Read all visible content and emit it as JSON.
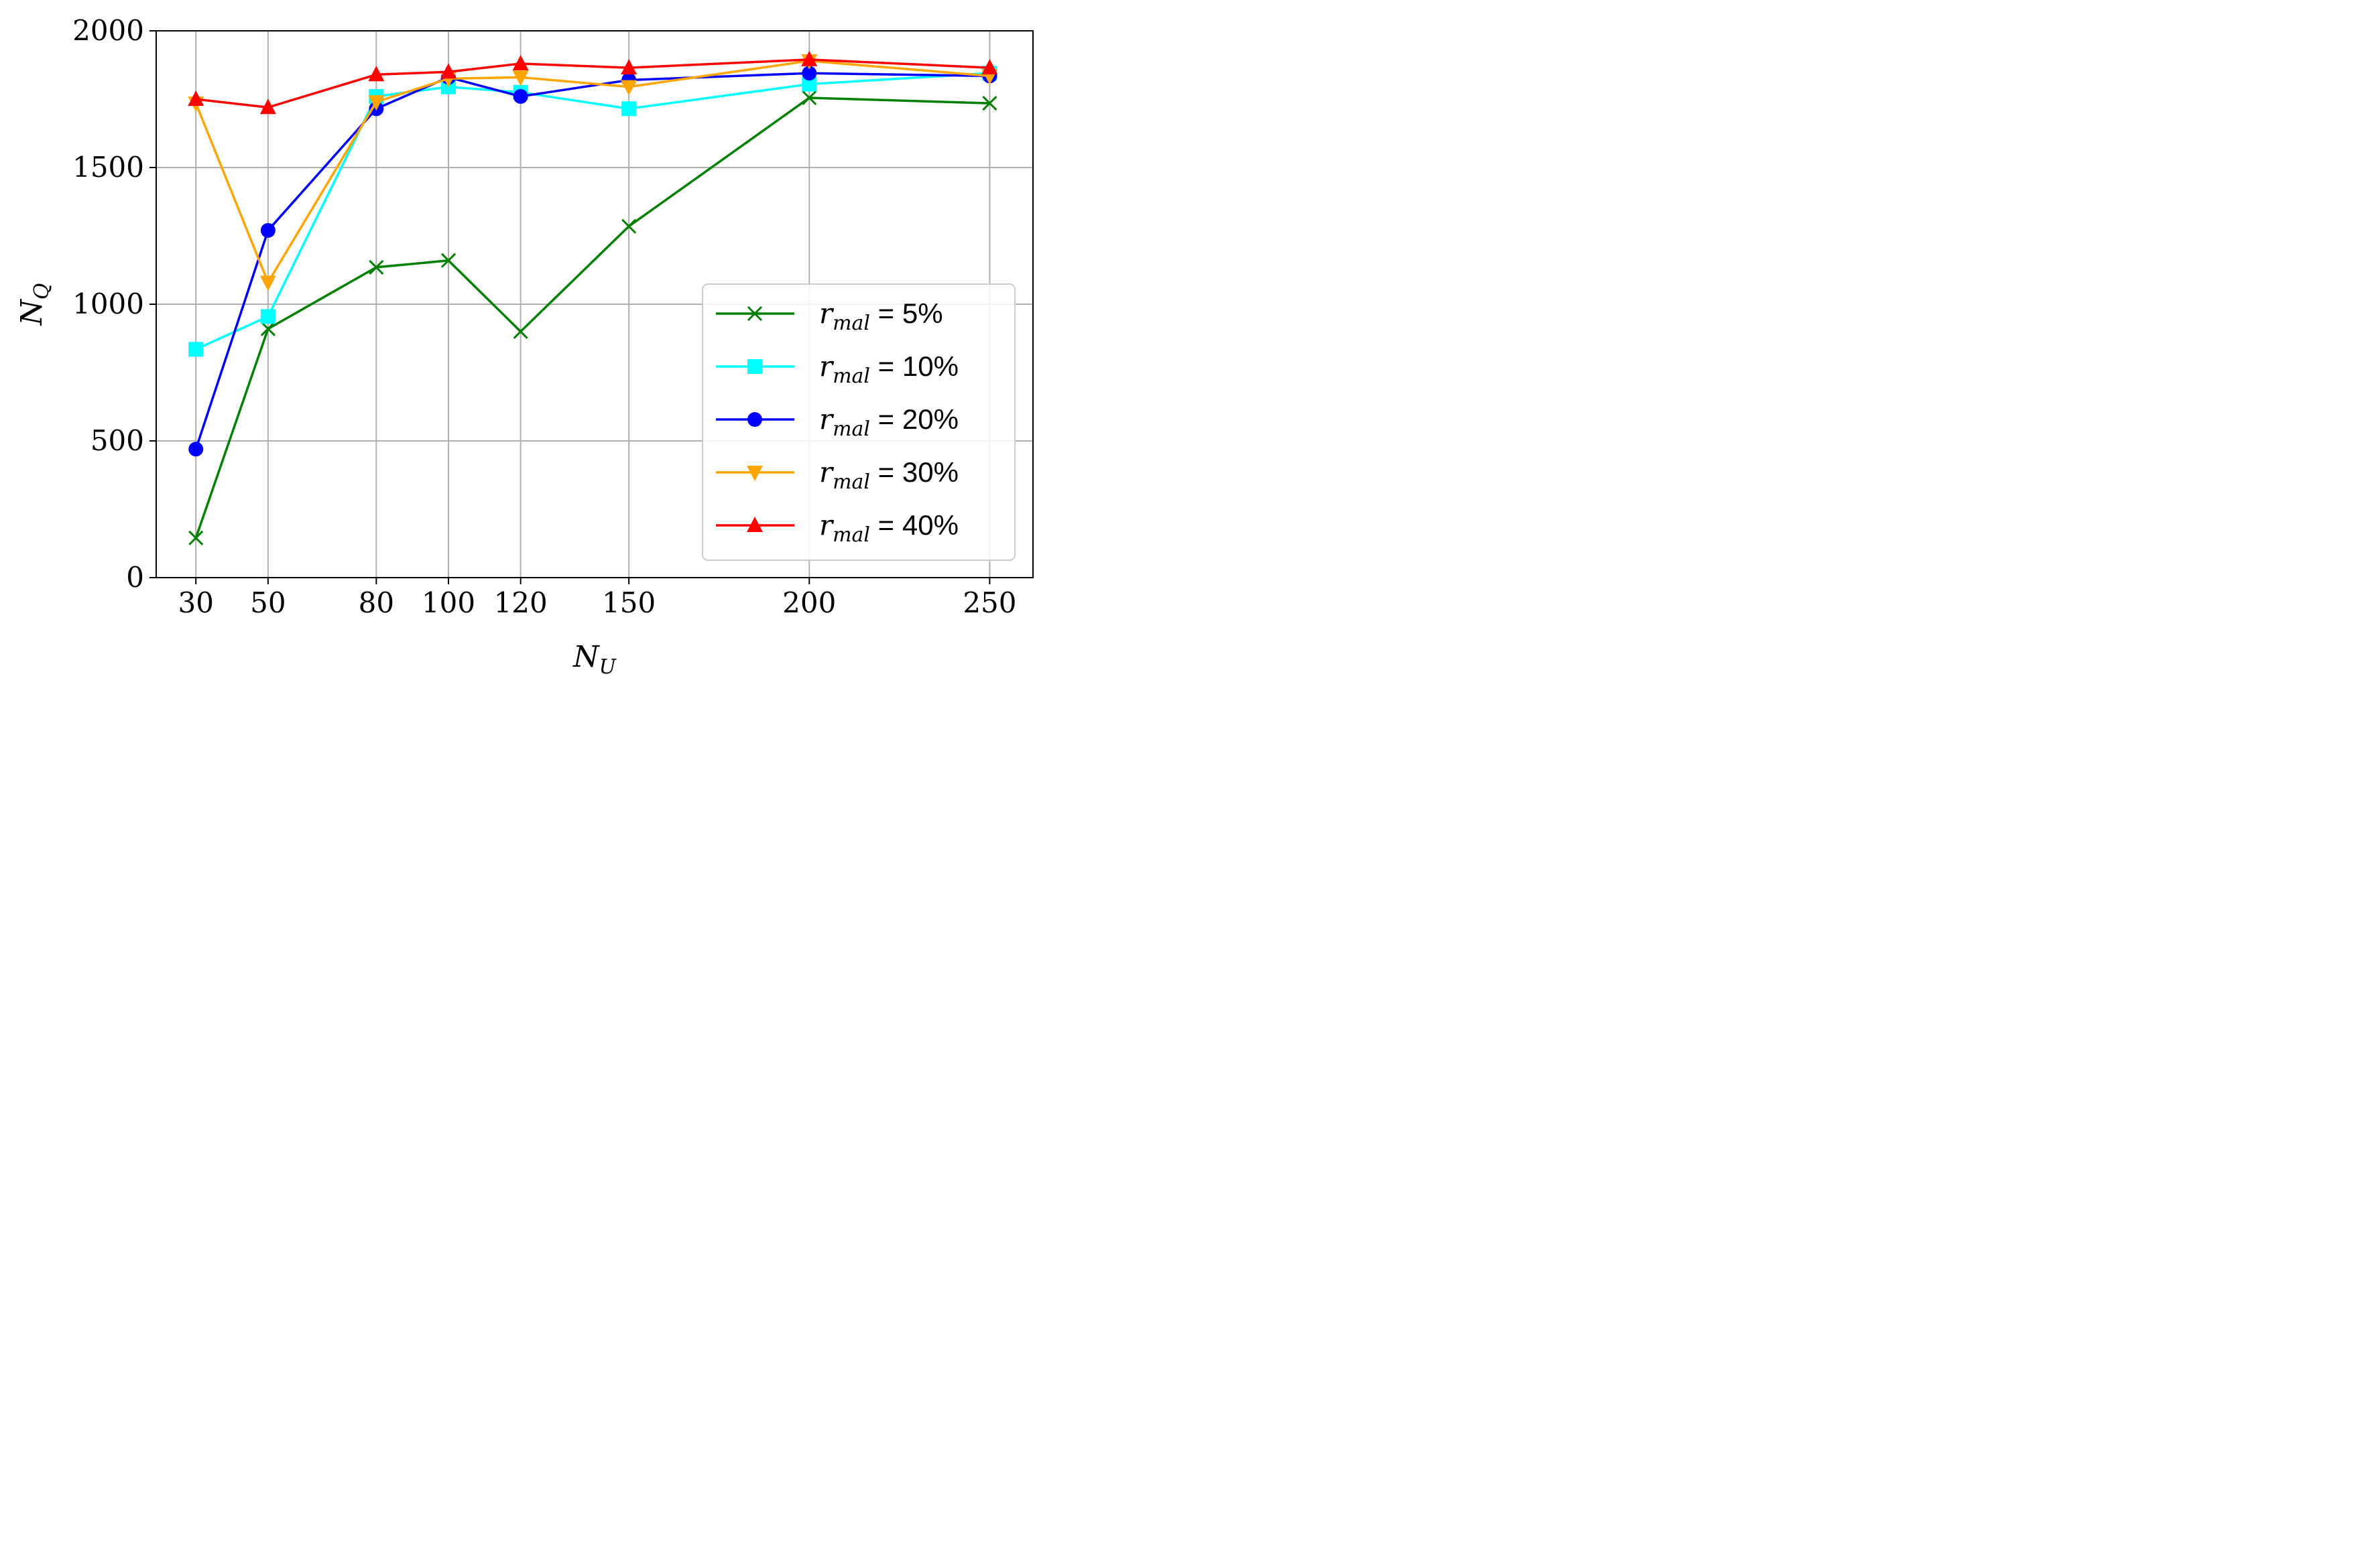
{
  "chart_data": {
    "type": "line",
    "xlabel": "N",
    "xlabel_sub": "U",
    "ylabel": "N",
    "ylabel_sub": "Q",
    "x": [
      30,
      50,
      80,
      100,
      120,
      150,
      200,
      250
    ],
    "xlim": [
      19,
      262
    ],
    "ylim": [
      0,
      2000
    ],
    "xticks": [
      30,
      50,
      80,
      100,
      120,
      150,
      200,
      250
    ],
    "yticks": [
      0,
      500,
      1000,
      1500,
      2000
    ],
    "grid": true,
    "legend_position": "lower-right",
    "series": [
      {
        "name_symbol": "r",
        "name_sub": "mal",
        "name_value": "= 5%",
        "color": "#008000",
        "marker": "x",
        "values": [
          145,
          910,
          1135,
          1160,
          900,
          1285,
          1755,
          1735
        ]
      },
      {
        "name_symbol": "r",
        "name_sub": "mal",
        "name_value": "= 10%",
        "color": "#00FFFF",
        "marker": "square",
        "values": [
          835,
          955,
          1760,
          1795,
          1775,
          1715,
          1805,
          1845
        ]
      },
      {
        "name_symbol": "r",
        "name_sub": "mal",
        "name_value": "= 20%",
        "color": "#0000FF",
        "marker": "circle",
        "values": [
          470,
          1270,
          1715,
          1830,
          1760,
          1820,
          1845,
          1835
        ]
      },
      {
        "name_symbol": "r",
        "name_sub": "mal",
        "name_value": "= 30%",
        "color": "#FFA500",
        "marker": "triangle-down",
        "values": [
          1735,
          1080,
          1740,
          1825,
          1830,
          1795,
          1890,
          1835
        ]
      },
      {
        "name_symbol": "r",
        "name_sub": "mal",
        "name_value": "= 40%",
        "color": "#FF0000",
        "marker": "triangle-up",
        "values": [
          1750,
          1720,
          1840,
          1850,
          1880,
          1865,
          1895,
          1865
        ]
      }
    ]
  }
}
